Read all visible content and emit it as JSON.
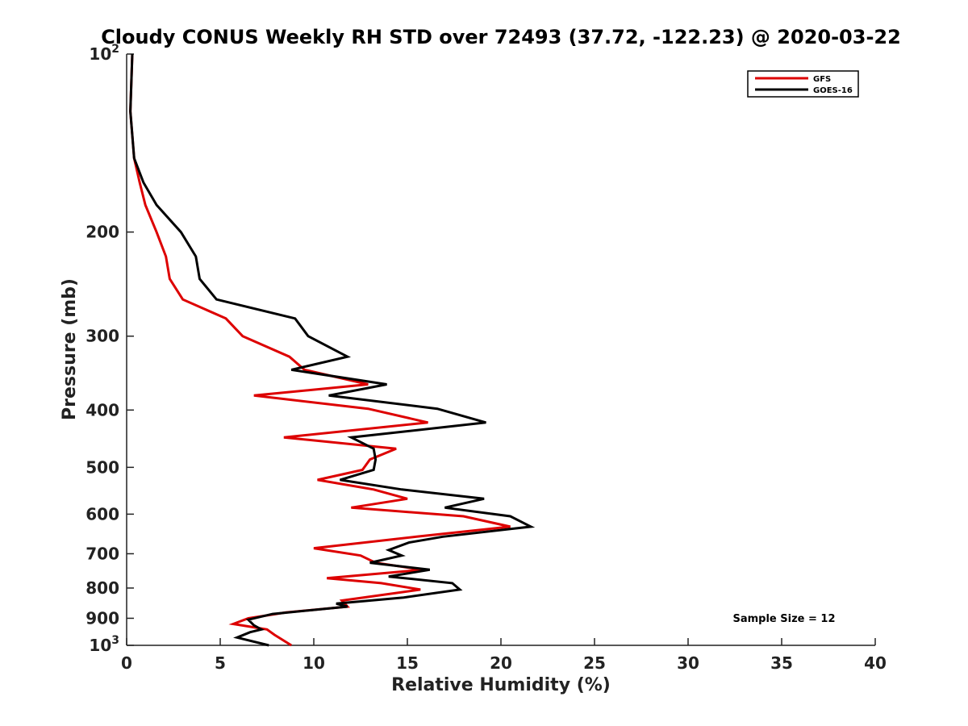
{
  "chart_data": {
    "type": "line",
    "title": "Cloudy CONUS Weekly RH STD over 72493 (37.72, -122.23) @ 2020-03-22",
    "xlabel": "Relative Humidity (%)",
    "ylabel": "Pressure (mb)",
    "xlim": [
      0,
      40
    ],
    "ylim": [
      100,
      1000
    ],
    "y_scale": "log",
    "y_inverted": true,
    "x_ticks": [
      0,
      5,
      10,
      15,
      20,
      25,
      30,
      35,
      40
    ],
    "x_tick_labels": [
      "0",
      "5",
      "10",
      "15",
      "20",
      "25",
      "30",
      "35",
      "40"
    ],
    "y_ticks": [
      100,
      200,
      300,
      400,
      500,
      600,
      700,
      800,
      900,
      1000
    ],
    "y_tick_labels": [
      {
        "base": "10",
        "exp": "2"
      },
      {
        "base": "200"
      },
      {
        "base": "300"
      },
      {
        "base": "400"
      },
      {
        "base": "500"
      },
      {
        "base": "600"
      },
      {
        "base": "700"
      },
      {
        "base": "800"
      },
      {
        "base": "900"
      },
      {
        "base": "10",
        "exp": "3"
      }
    ],
    "grid": false,
    "legend_position": "top-right",
    "annotation": "Sample Size = 12",
    "series": [
      {
        "name": "GFS",
        "color": "#dd0000",
        "points": [
          [
            0.3,
            100
          ],
          [
            0.2,
            125
          ],
          [
            0.4,
            150
          ],
          [
            0.7,
            165
          ],
          [
            1.0,
            180
          ],
          [
            1.6,
            200
          ],
          [
            2.1,
            220
          ],
          [
            2.3,
            240
          ],
          [
            3.0,
            260
          ],
          [
            5.3,
            280
          ],
          [
            6.2,
            300
          ],
          [
            8.7,
            325
          ],
          [
            9.5,
            342
          ],
          [
            12.9,
            362
          ],
          [
            6.8,
            378
          ],
          [
            12.9,
            398
          ],
          [
            16.1,
            420
          ],
          [
            8.4,
            445
          ],
          [
            14.4,
            465
          ],
          [
            13.0,
            485
          ],
          [
            12.6,
            505
          ],
          [
            10.2,
            525
          ],
          [
            13.2,
            545
          ],
          [
            15.0,
            565
          ],
          [
            12.0,
            585
          ],
          [
            18.0,
            605
          ],
          [
            20.5,
            630
          ],
          [
            15.5,
            655
          ],
          [
            10.0,
            685
          ],
          [
            12.5,
            705
          ],
          [
            13.3,
            725
          ],
          [
            15.8,
            745
          ],
          [
            10.7,
            770
          ],
          [
            13.6,
            785
          ],
          [
            15.7,
            805
          ],
          [
            11.5,
            840
          ],
          [
            11.8,
            860
          ],
          [
            8.5,
            880
          ],
          [
            6.5,
            900
          ],
          [
            5.7,
            920
          ],
          [
            7.5,
            940
          ],
          [
            7.9,
            960
          ],
          [
            8.8,
            1000
          ]
        ]
      },
      {
        "name": "GOES-16",
        "color": "#000000",
        "points": [
          [
            0.3,
            100
          ],
          [
            0.2,
            125
          ],
          [
            0.4,
            150
          ],
          [
            0.9,
            165
          ],
          [
            1.6,
            180
          ],
          [
            2.9,
            200
          ],
          [
            3.7,
            220
          ],
          [
            3.9,
            240
          ],
          [
            4.8,
            260
          ],
          [
            9.0,
            280
          ],
          [
            9.7,
            300
          ],
          [
            11.8,
            325
          ],
          [
            8.8,
            342
          ],
          [
            13.9,
            362
          ],
          [
            10.8,
            378
          ],
          [
            16.6,
            398
          ],
          [
            19.2,
            420
          ],
          [
            12.0,
            445
          ],
          [
            13.2,
            465
          ],
          [
            13.3,
            485
          ],
          [
            13.2,
            505
          ],
          [
            11.4,
            525
          ],
          [
            14.7,
            545
          ],
          [
            19.1,
            565
          ],
          [
            17.0,
            585
          ],
          [
            20.5,
            605
          ],
          [
            21.6,
            630
          ],
          [
            16.9,
            655
          ],
          [
            15.1,
            670
          ],
          [
            14.0,
            690
          ],
          [
            14.7,
            705
          ],
          [
            13.0,
            725
          ],
          [
            16.2,
            745
          ],
          [
            14.0,
            765
          ],
          [
            17.4,
            785
          ],
          [
            17.8,
            805
          ],
          [
            14.8,
            830
          ],
          [
            11.2,
            850
          ],
          [
            11.8,
            860
          ],
          [
            7.8,
            885
          ],
          [
            6.5,
            905
          ],
          [
            6.8,
            925
          ],
          [
            7.2,
            940
          ],
          [
            6.6,
            950
          ],
          [
            5.9,
            970
          ],
          [
            7.6,
            1000
          ]
        ]
      }
    ]
  }
}
